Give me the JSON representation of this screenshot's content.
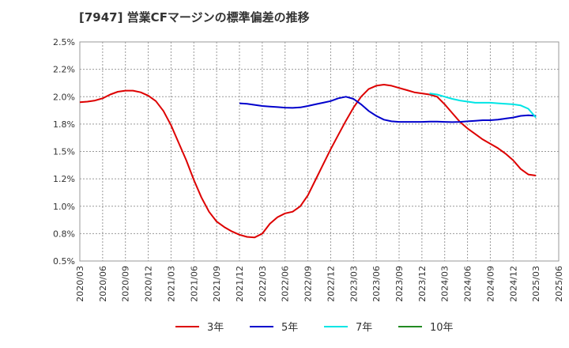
{
  "chart_data": {
    "type": "line",
    "title": "[7947]  営業CFマージンの標準偏差の推移",
    "xlabel": "",
    "ylabel": "",
    "x_ticks": [
      "2020/03",
      "2020/06",
      "2020/09",
      "2020/12",
      "2021/03",
      "2021/06",
      "2021/09",
      "2021/12",
      "2022/03",
      "2022/06",
      "2022/09",
      "2022/12",
      "2023/03",
      "2023/06",
      "2023/09",
      "2023/12",
      "2024/03",
      "2024/06",
      "2024/09",
      "2024/12",
      "2025/03",
      "2025/06"
    ],
    "y_ticks": [
      "0.5%",
      "0.8%",
      "1.0%",
      "1.2%",
      "1.5%",
      "1.8%",
      "2.0%",
      "2.2%",
      "2.5%"
    ],
    "ylim": [
      0.5,
      2.5
    ],
    "grid": true,
    "legend_position": "bottom",
    "series": [
      {
        "name": "3年",
        "color": "#dd0000",
        "x": [
          "2020/03",
          "2020/04",
          "2020/05",
          "2020/06",
          "2020/07",
          "2020/08",
          "2020/09",
          "2020/10",
          "2020/11",
          "2020/12",
          "2021/01",
          "2021/02",
          "2021/03",
          "2021/04",
          "2021/05",
          "2021/06",
          "2021/07",
          "2021/08",
          "2021/09",
          "2021/10",
          "2021/11",
          "2021/12",
          "2022/01",
          "2022/02",
          "2022/03",
          "2022/04",
          "2022/05",
          "2022/06",
          "2022/07",
          "2022/08",
          "2022/09",
          "2022/10",
          "2022/11",
          "2022/12",
          "2023/01",
          "2023/02",
          "2023/03",
          "2023/04",
          "2023/05",
          "2023/06",
          "2023/07",
          "2023/08",
          "2023/09",
          "2023/10",
          "2023/11",
          "2023/12",
          "2024/01",
          "2024/02",
          "2024/03",
          "2024/04",
          "2024/05",
          "2024/06",
          "2024/07",
          "2024/08",
          "2024/09",
          "2024/10",
          "2024/11",
          "2024/12",
          "2025/01",
          "2025/02",
          "2025/03"
        ],
        "values": [
          1.95,
          1.955,
          1.965,
          1.985,
          2.02,
          2.045,
          2.055,
          2.055,
          2.04,
          2.01,
          1.96,
          1.87,
          1.74,
          1.58,
          1.42,
          1.24,
          1.08,
          0.95,
          0.86,
          0.81,
          0.77,
          0.74,
          0.72,
          0.715,
          0.75,
          0.84,
          0.9,
          0.935,
          0.95,
          1.0,
          1.1,
          1.24,
          1.38,
          1.52,
          1.65,
          1.78,
          1.9,
          2.0,
          2.07,
          2.1,
          2.11,
          2.1,
          2.08,
          2.06,
          2.04,
          2.03,
          2.02,
          2.0,
          1.93,
          1.85,
          1.77,
          1.71,
          1.66,
          1.61,
          1.57,
          1.53,
          1.48,
          1.42,
          1.34,
          1.29,
          1.28
        ]
      },
      {
        "name": "5年",
        "color": "#0000cc",
        "x": [
          "2021/12",
          "2022/01",
          "2022/02",
          "2022/03",
          "2022/04",
          "2022/05",
          "2022/06",
          "2022/07",
          "2022/08",
          "2022/09",
          "2022/10",
          "2022/11",
          "2022/12",
          "2023/01",
          "2023/02",
          "2023/03",
          "2023/04",
          "2023/05",
          "2023/06",
          "2023/07",
          "2023/08",
          "2023/09",
          "2023/10",
          "2023/11",
          "2023/12",
          "2024/01",
          "2024/02",
          "2024/03",
          "2024/04",
          "2024/05",
          "2024/06",
          "2024/07",
          "2024/08",
          "2024/09",
          "2024/10",
          "2024/11",
          "2024/12",
          "2025/01",
          "2025/02",
          "2025/03"
        ],
        "values": [
          1.94,
          1.935,
          1.925,
          1.915,
          1.91,
          1.905,
          1.9,
          1.898,
          1.902,
          1.915,
          1.93,
          1.945,
          1.96,
          1.985,
          2.0,
          1.98,
          1.93,
          1.87,
          1.825,
          1.79,
          1.775,
          1.77,
          1.77,
          1.77,
          1.77,
          1.772,
          1.772,
          1.77,
          1.768,
          1.77,
          1.775,
          1.78,
          1.785,
          1.785,
          1.79,
          1.8,
          1.81,
          1.825,
          1.83,
          1.825
        ]
      },
      {
        "name": "7年",
        "color": "#00e5e5",
        "x": [
          "2024/01",
          "2024/02",
          "2024/03",
          "2024/04",
          "2024/05",
          "2024/06",
          "2024/07",
          "2024/08",
          "2024/09",
          "2024/10",
          "2024/11",
          "2024/12",
          "2025/01",
          "2025/02",
          "2025/03"
        ],
        "values": [
          2.03,
          2.02,
          2.0,
          1.98,
          1.965,
          1.955,
          1.945,
          1.945,
          1.945,
          1.94,
          1.935,
          1.93,
          1.92,
          1.89,
          1.81
        ]
      },
      {
        "name": "10年",
        "color": "#228b22",
        "x": [],
        "values": []
      }
    ]
  }
}
